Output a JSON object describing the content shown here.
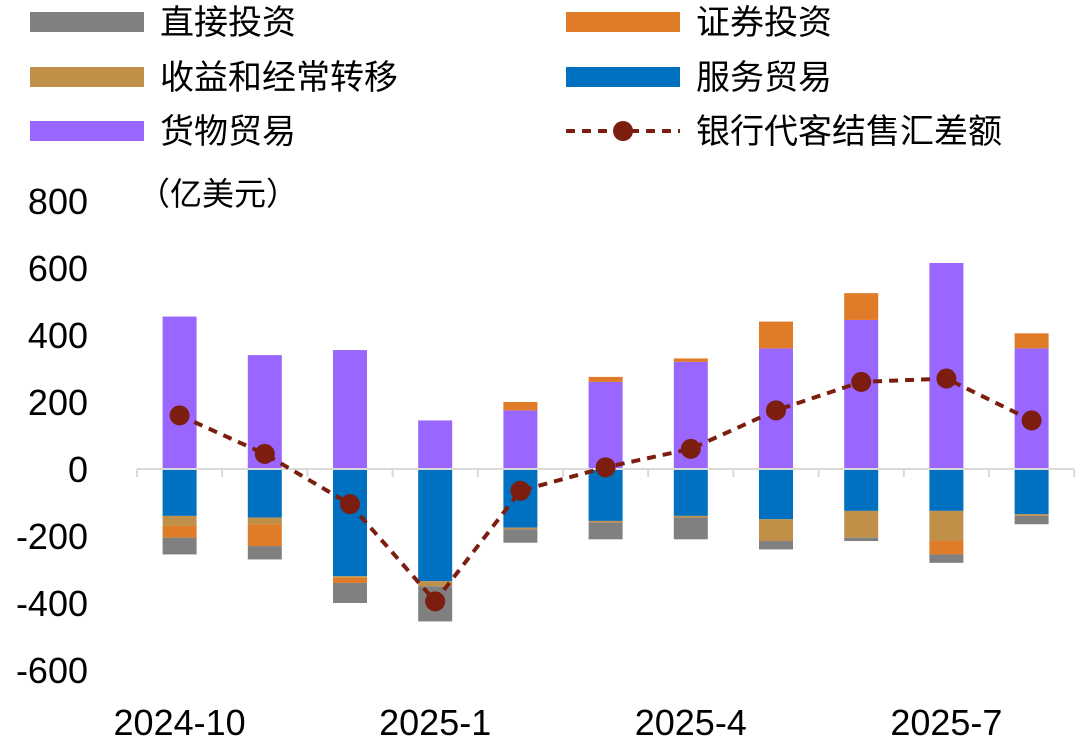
{
  "chart_data": {
    "type": "bar",
    "unit": "（亿美元）",
    "ylim": [
      -600,
      800
    ],
    "yticks": [
      800,
      600,
      400,
      200,
      0,
      -200,
      -400,
      -600
    ],
    "x_tick_labels": [
      "2024-10",
      "2025-1",
      "2025-4",
      "2025-7"
    ],
    "x_tick_positions": [
      0,
      3,
      6,
      9
    ],
    "categories": [
      "2024-10",
      "2024-11",
      "2024-12",
      "2025-1",
      "2025-2",
      "2025-3",
      "2025-4",
      "2025-5",
      "2025-6",
      "2025-7",
      "2025-8"
    ],
    "series": [
      {
        "name": "货物贸易",
        "color": "#9966FF",
        "values": [
          455,
          340,
          355,
          145,
          175,
          260,
          320,
          360,
          445,
          615,
          360
        ]
      },
      {
        "name": "服务贸易",
        "color": "#0070C0",
        "values": [
          -140,
          -145,
          -320,
          -335,
          -175,
          -155,
          -140,
          -150,
          -125,
          -125,
          -135
        ]
      },
      {
        "name": "收益和经常转移",
        "color": "#C09048",
        "values": [
          -30,
          -20,
          -5,
          -15,
          -5,
          -5,
          -5,
          -65,
          -80,
          -90,
          -5
        ]
      },
      {
        "name": "证券投资",
        "color": "#E07B28",
        "values": [
          -35,
          -65,
          -15,
          0,
          25,
          15,
          10,
          80,
          80,
          -40,
          45
        ]
      },
      {
        "name": "直接投资",
        "color": "#808080",
        "values": [
          -50,
          -40,
          -60,
          -105,
          -40,
          -50,
          -65,
          -25,
          -10,
          -25,
          -25
        ]
      }
    ],
    "line": {
      "name": "银行代客结售汇差额",
      "color": "#7B1D0F",
      "values": [
        160,
        45,
        -105,
        -395,
        -65,
        5,
        60,
        175,
        260,
        270,
        145
      ]
    },
    "legend": {
      "placement": "top",
      "items": [
        {
          "label": "直接投资",
          "color": "#808080",
          "kind": "bar"
        },
        {
          "label": "证券投资",
          "color": "#E07B28",
          "kind": "bar"
        },
        {
          "label": "收益和经常转移",
          "color": "#C09048",
          "kind": "bar"
        },
        {
          "label": "服务贸易",
          "color": "#0070C0",
          "kind": "bar"
        },
        {
          "label": "货物贸易",
          "color": "#9966FF",
          "kind": "bar"
        },
        {
          "label": "银行代客结售汇差额",
          "color": "#7B1D0F",
          "kind": "line"
        }
      ]
    },
    "grid": false
  }
}
